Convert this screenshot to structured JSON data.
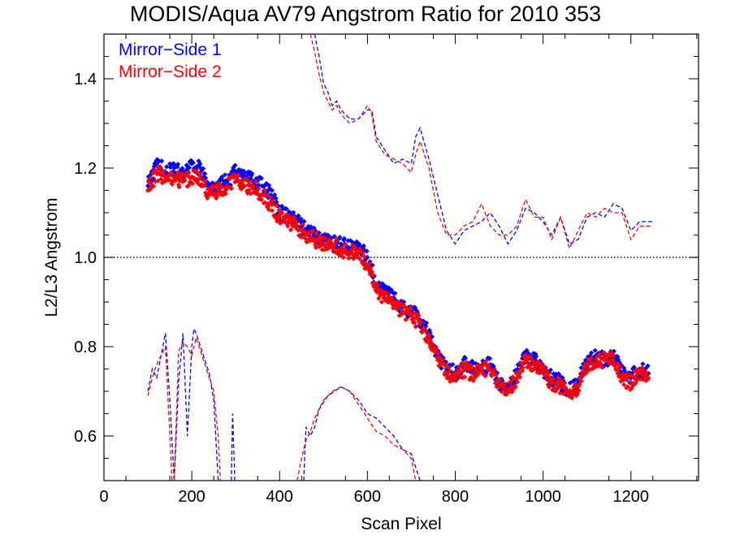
{
  "chart_data": {
    "type": "scatter",
    "title": "MODIS/Aqua AV79 Angstrom Ratio for 2010 353",
    "xlabel": "Scan Pixel",
    "ylabel": "L2/L3 Angstrom",
    "xlim": [
      0,
      1354
    ],
    "ylim": [
      0.5,
      1.5
    ],
    "xticks": [
      0,
      200,
      400,
      600,
      800,
      1000,
      1200
    ],
    "xtick_labels": [
      "0",
      "200",
      "400",
      "600",
      "800",
      "1000",
      "1200"
    ],
    "yticks": [
      0.6,
      0.8,
      1.0,
      1.2,
      1.4
    ],
    "ytick_labels": [
      "0.6",
      "0.8",
      "1.0",
      "1.2",
      "1.4"
    ],
    "reference_line": {
      "y": 1.0,
      "style": "dotted",
      "color": "#000000"
    },
    "legend": {
      "position": "top-left"
    },
    "series": [
      {
        "name": "Mirror−Side 1",
        "color": "#0000ff",
        "points": {
          "x": [
            100,
            120,
            140,
            160,
            180,
            200,
            220,
            240,
            260,
            280,
            300,
            320,
            340,
            360,
            380,
            400,
            420,
            440,
            460,
            480,
            500,
            520,
            540,
            560,
            580,
            600,
            620,
            640,
            660,
            680,
            700,
            720,
            740,
            760,
            780,
            800,
            820,
            840,
            860,
            880,
            900,
            920,
            940,
            960,
            980,
            1000,
            1020,
            1040,
            1060,
            1080,
            1100,
            1120,
            1140,
            1160,
            1180,
            1200,
            1220,
            1240
          ],
          "y": [
            1.16,
            1.21,
            1.19,
            1.2,
            1.19,
            1.21,
            1.2,
            1.15,
            1.16,
            1.17,
            1.19,
            1.18,
            1.17,
            1.16,
            1.14,
            1.1,
            1.09,
            1.08,
            1.06,
            1.05,
            1.04,
            1.03,
            1.03,
            1.02,
            1.02,
            1.0,
            0.94,
            0.92,
            0.91,
            0.89,
            0.88,
            0.86,
            0.83,
            0.78,
            0.75,
            0.74,
            0.76,
            0.75,
            0.75,
            0.76,
            0.72,
            0.71,
            0.74,
            0.78,
            0.77,
            0.75,
            0.73,
            0.72,
            0.7,
            0.72,
            0.77,
            0.78,
            0.77,
            0.78,
            0.74,
            0.73,
            0.75,
            0.74
          ]
        },
        "upper_dashed": {
          "x": [
            480,
            490,
            500,
            510,
            520,
            530,
            540,
            560,
            580,
            600,
            610,
            620,
            640,
            660,
            680,
            700,
            710,
            720,
            740,
            760,
            780,
            800,
            820,
            840,
            860,
            880,
            900,
            920,
            940,
            960,
            980,
            1000,
            1020,
            1040,
            1060,
            1080,
            1100,
            1120,
            1140,
            1160,
            1180,
            1200,
            1220,
            1250
          ],
          "y": [
            1.5,
            1.45,
            1.39,
            1.37,
            1.34,
            1.35,
            1.33,
            1.31,
            1.31,
            1.33,
            1.33,
            1.27,
            1.24,
            1.21,
            1.22,
            1.21,
            1.27,
            1.29,
            1.22,
            1.14,
            1.06,
            1.03,
            1.06,
            1.07,
            1.08,
            1.1,
            1.07,
            1.03,
            1.06,
            1.11,
            1.1,
            1.08,
            1.05,
            1.09,
            1.03,
            1.04,
            1.09,
            1.1,
            1.09,
            1.12,
            1.11,
            1.06,
            1.08,
            1.08
          ]
        },
        "lower_dashed": [
          {
            "x": [
              100,
              110,
              120,
              140,
              150,
              160,
              170,
              180,
              190,
              200,
              205,
              210,
              220,
              240,
              250,
              260,
              268
            ],
            "y": [
              0.7,
              0.75,
              0.73,
              0.83,
              0.68,
              0.5,
              0.72,
              0.83,
              0.6,
              0.8,
              0.84,
              0.83,
              0.8,
              0.74,
              0.68,
              0.5,
              0.5
            ]
          },
          {
            "x": [
              290,
              293,
              298,
              303
            ],
            "y": [
              0.5,
              0.65,
              0.5,
              0.5
            ]
          },
          {
            "x": [
              455,
              460,
              470,
              480,
              490,
              510,
              540,
              560,
              580,
              600,
              620,
              640,
              660,
              680,
              700,
              720
            ],
            "y": [
              0.5,
              0.62,
              0.6,
              0.62,
              0.66,
              0.69,
              0.71,
              0.7,
              0.68,
              0.65,
              0.64,
              0.62,
              0.6,
              0.57,
              0.56,
              0.5
            ]
          }
        ]
      },
      {
        "name": "Mirror−Side 2",
        "color": "#ff0000",
        "points": {
          "x": [
            100,
            120,
            140,
            160,
            180,
            200,
            220,
            240,
            260,
            280,
            300,
            320,
            340,
            360,
            380,
            400,
            420,
            440,
            460,
            480,
            500,
            520,
            540,
            560,
            580,
            600,
            620,
            640,
            660,
            680,
            700,
            720,
            740,
            760,
            780,
            800,
            820,
            840,
            860,
            880,
            900,
            920,
            940,
            960,
            980,
            1000,
            1020,
            1040,
            1060,
            1080,
            1100,
            1120,
            1140,
            1160,
            1180,
            1200,
            1220,
            1240
          ],
          "y": [
            1.15,
            1.19,
            1.18,
            1.18,
            1.17,
            1.18,
            1.18,
            1.14,
            1.15,
            1.16,
            1.17,
            1.16,
            1.16,
            1.14,
            1.12,
            1.09,
            1.08,
            1.07,
            1.05,
            1.04,
            1.03,
            1.03,
            1.02,
            1.01,
            1.01,
            0.98,
            0.93,
            0.91,
            0.9,
            0.88,
            0.87,
            0.85,
            0.82,
            0.77,
            0.74,
            0.73,
            0.75,
            0.74,
            0.75,
            0.75,
            0.71,
            0.7,
            0.73,
            0.77,
            0.76,
            0.74,
            0.72,
            0.71,
            0.69,
            0.71,
            0.76,
            0.77,
            0.77,
            0.77,
            0.73,
            0.72,
            0.74,
            0.73
          ]
        },
        "upper_dashed": {
          "x": [
            470,
            480,
            490,
            500,
            510,
            520,
            530,
            540,
            560,
            580,
            600,
            610,
            620,
            640,
            660,
            680,
            700,
            710,
            720,
            740,
            760,
            780,
            800,
            820,
            840,
            860,
            880,
            900,
            920,
            940,
            960,
            980,
            1000,
            1020,
            1040,
            1060,
            1080,
            1100,
            1120,
            1140,
            1160,
            1180,
            1200,
            1220,
            1250
          ],
          "y": [
            1.5,
            1.46,
            1.41,
            1.37,
            1.35,
            1.33,
            1.34,
            1.32,
            1.3,
            1.31,
            1.34,
            1.32,
            1.26,
            1.23,
            1.22,
            1.21,
            1.19,
            1.23,
            1.26,
            1.2,
            1.1,
            1.05,
            1.05,
            1.07,
            1.08,
            1.12,
            1.07,
            1.05,
            1.05,
            1.07,
            1.13,
            1.09,
            1.09,
            1.04,
            1.09,
            1.02,
            1.06,
            1.1,
            1.09,
            1.11,
            1.1,
            1.1,
            1.04,
            1.07,
            1.07
          ]
        },
        "lower_dashed": [
          {
            "x": [
              100,
              110,
              120,
              130,
              140,
              150,
              155,
              160,
              170,
              180,
              190,
              200,
              210,
              220,
              240,
              250,
              260,
              265
            ],
            "y": [
              0.69,
              0.73,
              0.76,
              0.78,
              0.8,
              0.6,
              0.5,
              0.5,
              0.79,
              0.81,
              0.8,
              0.78,
              0.82,
              0.79,
              0.73,
              0.7,
              0.6,
              0.5
            ]
          },
          {
            "x": [
              440,
              450,
              460,
              470,
              480,
              490,
              500,
              520,
              540,
              560,
              580,
              600,
              620,
              640,
              660,
              680,
              700,
              710
            ],
            "y": [
              0.5,
              0.55,
              0.59,
              0.61,
              0.64,
              0.66,
              0.68,
              0.7,
              0.71,
              0.7,
              0.67,
              0.64,
              0.61,
              0.6,
              0.58,
              0.57,
              0.55,
              0.5
            ]
          }
        ]
      }
    ]
  }
}
